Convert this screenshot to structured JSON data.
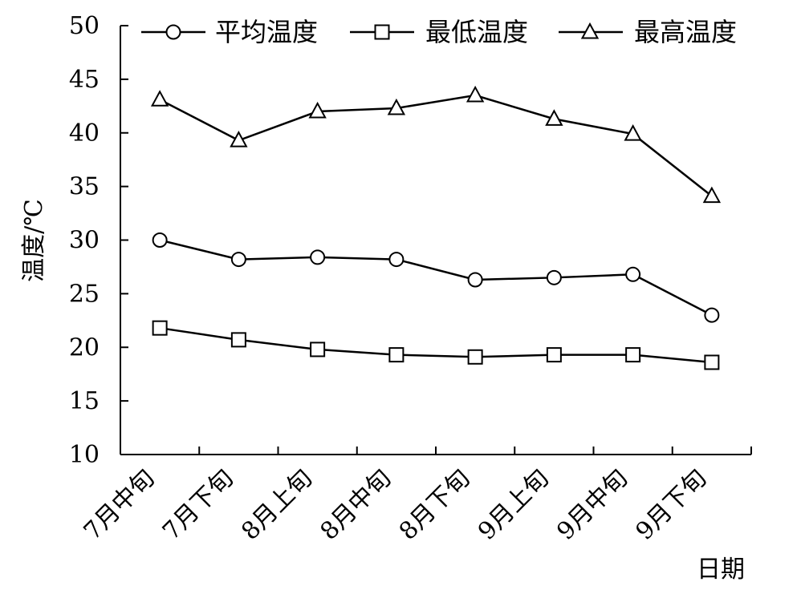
{
  "chart_data": {
    "type": "line",
    "categories": [
      "7月中旬",
      "7月下旬",
      "8月上旬",
      "8月中旬",
      "8月下旬",
      "9月上旬",
      "9月中旬",
      "9月下旬"
    ],
    "series": [
      {
        "name": "平均温度",
        "marker": "circle",
        "values": [
          30.0,
          28.2,
          28.4,
          28.2,
          26.3,
          26.5,
          26.8,
          23.0
        ]
      },
      {
        "name": "最低温度",
        "marker": "square",
        "values": [
          21.8,
          20.7,
          19.8,
          19.3,
          19.1,
          19.3,
          19.3,
          18.6
        ]
      },
      {
        "name": "最高温度",
        "marker": "triangle",
        "values": [
          43.1,
          39.3,
          42.0,
          42.3,
          43.5,
          41.3,
          39.9,
          34.1
        ]
      }
    ],
    "ylim": [
      10,
      50
    ],
    "yticks": [
      10,
      15,
      20,
      25,
      30,
      35,
      40,
      45,
      50
    ],
    "xlabel": "日期",
    "ylabel": "温度/℃",
    "legend_position": "top",
    "grid": false
  }
}
